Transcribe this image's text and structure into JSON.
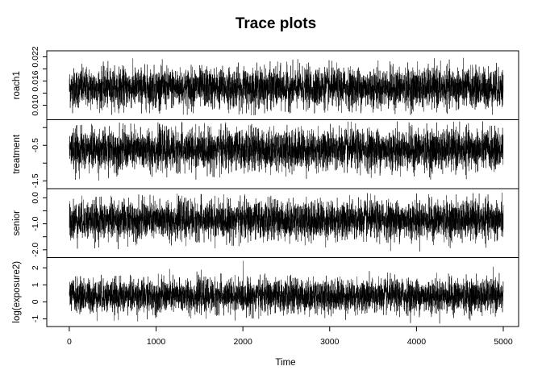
{
  "chart_data": {
    "type": "line",
    "title": "Trace plots",
    "xlabel": "Time",
    "xlim": [
      1,
      5000
    ],
    "xticks": [
      0,
      1000,
      2000,
      3000,
      4000,
      5000
    ],
    "x_tick_labels": [
      "0",
      "1000",
      "2000",
      "3000",
      "4000",
      "5000"
    ],
    "n_iterations": 5000,
    "line_color": "#000000",
    "panels": [
      {
        "name": "roach1",
        "ylabel": "roach1",
        "ylim": [
          0.0064,
          0.0235
        ],
        "yticks": [
          0.01,
          0.013,
          0.016,
          0.019,
          0.022
        ],
        "y_tick_labels": [
          "0.010",
          "",
          "0.016",
          "",
          "0.022"
        ],
        "center": 0.0143,
        "sd": 0.0024,
        "min": 0.0075,
        "max": 0.0218
      },
      {
        "name": "treatment",
        "ylabel": "treatment",
        "ylim": [
          -1.72,
          0.22
        ],
        "yticks": [
          -1.5,
          -1.0,
          -0.5,
          0.0
        ],
        "y_tick_labels": [
          "-1.5",
          "",
          "-0.5",
          ""
        ],
        "center": -0.62,
        "sd": 0.28,
        "min": -1.5,
        "max": 0.18
      },
      {
        "name": "senior",
        "ylabel": "senior",
        "ylim": [
          -2.3,
          0.35
        ],
        "yticks": [
          -2.0,
          -1.5,
          -1.0,
          -0.5,
          0.0
        ],
        "y_tick_labels": [
          "-2.0",
          "",
          "-1.0",
          "",
          "0.0"
        ],
        "center": -0.85,
        "sd": 0.36,
        "min": -2.1,
        "max": 0.2
      },
      {
        "name": "log(exposure2)",
        "ylabel": "log(exposure2)",
        "ylim": [
          -1.45,
          2.6
        ],
        "yticks": [
          -1,
          0,
          1,
          2
        ],
        "y_tick_labels": [
          "-1",
          "0",
          "1",
          "2"
        ],
        "center": 0.35,
        "sd": 0.48,
        "min": -1.3,
        "max": 2.45
      }
    ]
  }
}
